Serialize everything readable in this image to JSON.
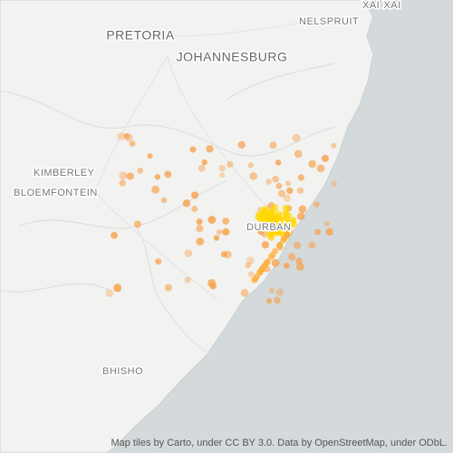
{
  "map": {
    "cities": [
      "XAI-XAI",
      "NELSPRUIT",
      "PRETORIA",
      "JOHANNESBURG",
      "KIMBERLEY",
      "BLOEMFONTEIN",
      "DURBAN",
      "BHISHO"
    ],
    "attribution": "Map tiles by Carto, under CC BY 3.0. Data by OpenStreetMap, under ODbL."
  }
}
